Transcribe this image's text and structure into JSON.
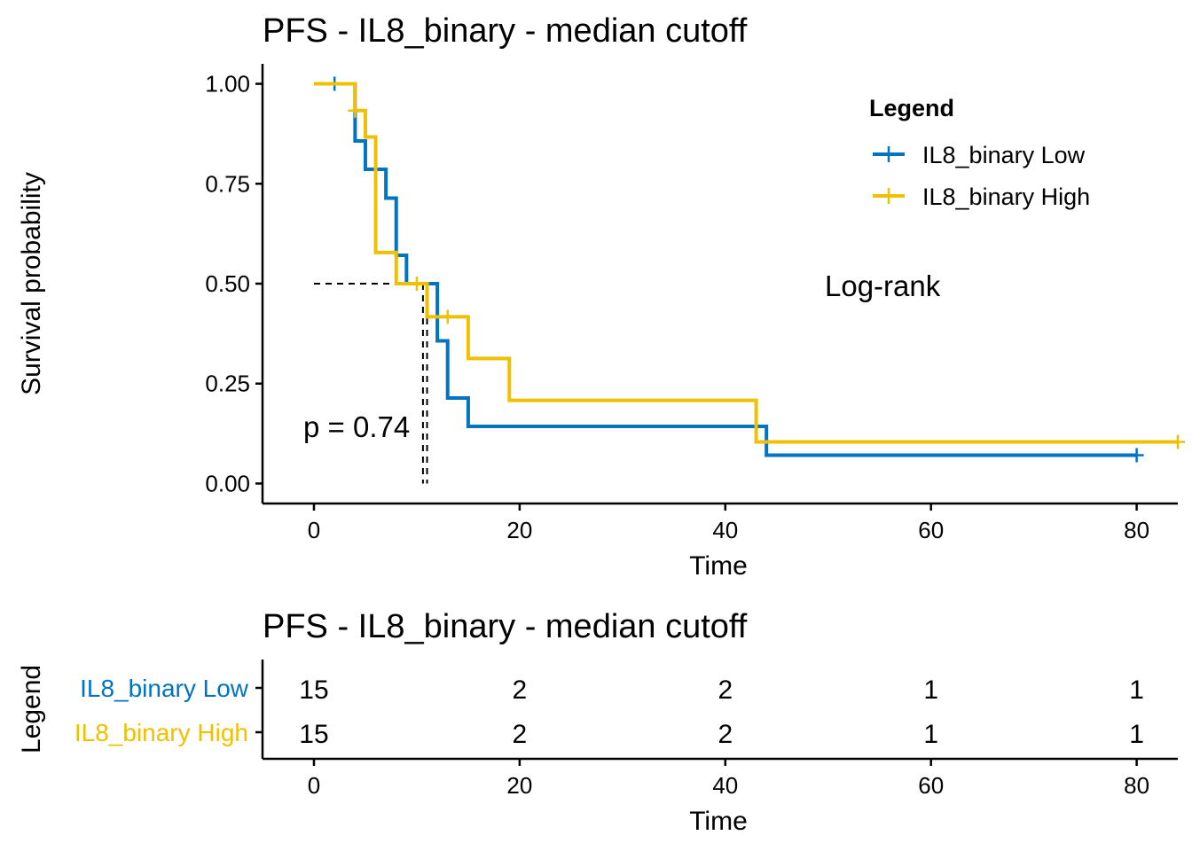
{
  "chart_data": [
    {
      "type": "line",
      "subtype": "kaplan-meier",
      "title": "PFS - IL8_binary - median cutoff",
      "xlabel": "Time",
      "ylabel": "Survival probability",
      "xlim": [
        -5,
        84
      ],
      "ylim": [
        -0.05,
        1.05
      ],
      "xticks": [
        0,
        20,
        40,
        60,
        80
      ],
      "yticks": [
        0,
        0.25,
        0.5,
        0.75,
        1.0
      ],
      "ytick_labels": [
        "0.00",
        "0.25",
        "0.50",
        "0.75",
        "1.00"
      ],
      "grid": false,
      "legend": {
        "title": "Legend",
        "position": "top-right",
        "entries": [
          "IL8_binary Low",
          "IL8_binary High"
        ]
      },
      "annotations": {
        "method": "Log-rank",
        "pvalue": "p = 0.74"
      },
      "median_line": {
        "y": 0.5,
        "x": [
          10.6,
          11.0
        ]
      },
      "series": [
        {
          "name": "IL8_binary Low",
          "color": "#0073C2",
          "steps": [
            [
              0,
              1.0
            ],
            [
              4,
              0.857
            ],
            [
              5,
              0.786
            ],
            [
              7,
              0.714
            ],
            [
              8,
              0.571
            ],
            [
              9,
              0.5
            ],
            [
              12,
              0.357
            ],
            [
              13,
              0.214
            ],
            [
              15,
              0.143
            ],
            [
              44,
              0.071
            ],
            [
              80,
              0.071
            ]
          ],
          "censor": [
            [
              2,
              1.0
            ],
            [
              80,
              0.071
            ]
          ]
        },
        {
          "name": "IL8_binary High",
          "color": "#EFC000",
          "steps": [
            [
              0,
              1.0
            ],
            [
              4,
              0.933
            ],
            [
              5,
              0.867
            ],
            [
              6,
              0.578
            ],
            [
              8,
              0.5
            ],
            [
              11,
              0.417
            ],
            [
              15,
              0.313
            ],
            [
              19,
              0.208
            ],
            [
              43,
              0.104
            ],
            [
              84,
              0.104
            ]
          ],
          "censor": [
            [
              4,
              0.933
            ],
            [
              10,
              0.5
            ],
            [
              13,
              0.417
            ],
            [
              84,
              0.104
            ]
          ]
        }
      ]
    },
    {
      "type": "table",
      "title": "PFS - IL8_binary - median cutoff",
      "xlabel": "Time",
      "ylabel": "Legend",
      "xlim": [
        -5,
        84
      ],
      "xticks": [
        0,
        20,
        40,
        60,
        80
      ],
      "rows": [
        {
          "name": "IL8_binary Low",
          "color": "#0073C2",
          "values": [
            15,
            2,
            2,
            1,
            1
          ]
        },
        {
          "name": "IL8_binary High",
          "color": "#EFC000",
          "values": [
            15,
            2,
            2,
            1,
            1
          ]
        }
      ]
    }
  ]
}
